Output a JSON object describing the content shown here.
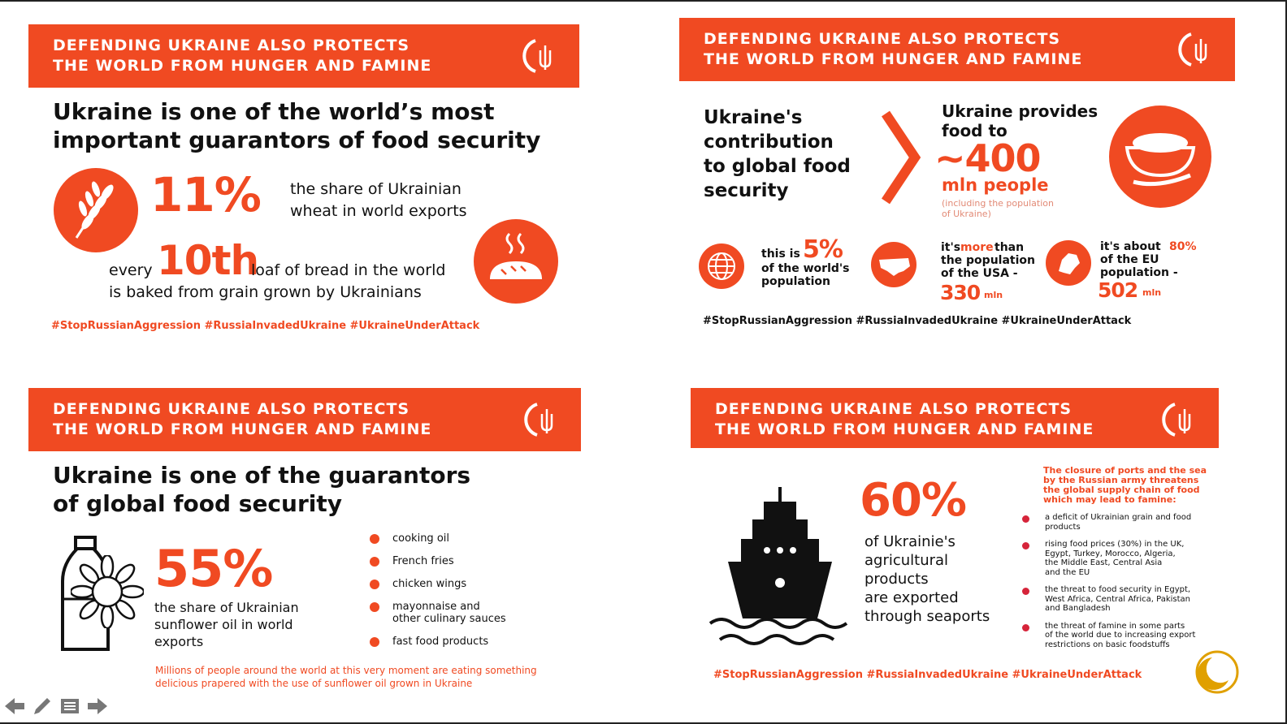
{
  "banner_title": "DEFENDING UKRAINE ALSO PROTECTS\nTHE WORLD FROM HUNGER AND FAMINE",
  "hashtags": "#StopRussianAggression #RussiaInvadedUkraine #UkraineUnderAttack",
  "colors": {
    "accent": "#f04a22",
    "text": "#111111"
  },
  "card1": {
    "heading": "Ukraine is one of the world’s most\nimportant guarantors of food security",
    "stat1_value": "11%",
    "stat1_text": "the share of Ukrainian\nwheat in world exports",
    "every": "every",
    "stat2_value": "10th",
    "stat2_text_1": "loaf of bread in the world",
    "stat2_text_2": "is baked from grain grown by Ukrainians",
    "icons": [
      "wheat-icon",
      "bread-icon"
    ]
  },
  "card2": {
    "heading": "Ukraine's\ncontribution\nto global food\nsecurity",
    "provides": "Ukraine provides\nfood to",
    "value": "~400",
    "unit": "mln people",
    "note": "(including the population\nof Ukraine)",
    "world_text": "this is",
    "world_value": "5%",
    "world_text_2": "of the world's\npopulation",
    "usa_text_1": "it's",
    "usa_more": "more",
    "usa_text_2": "than\nthe population\nof the USA -",
    "usa_value": "330",
    "usa_unit": "mln",
    "eu_text_1": "it's about",
    "eu_pct": "80%",
    "eu_text_2": "of the EU\npopulation -",
    "eu_value": "502",
    "eu_unit": "mln",
    "icons": [
      "globe-icon",
      "usa-map-icon",
      "europe-map-icon",
      "grain-bowl-icon"
    ]
  },
  "card3": {
    "heading": "Ukraine is one of the guarantors\nof global food security",
    "value": "55%",
    "text": "the share of Ukrainian\nsunflower oil in world\nexports",
    "items": [
      "cooking oil",
      "French fries",
      "chicken wings",
      "mayonnaise and\nother culinary sauces",
      "fast food products"
    ],
    "footer": "Millions of people around the world at this very moment are eating something\ndelicious prapered with the use of sunflower oil grown in Ukraine",
    "icons": [
      "bottle-icon",
      "sunflower-icon"
    ]
  },
  "card4": {
    "value": "60%",
    "text": "of Ukrainie's\nagricultural\nproducts\nare exported\nthrough seaports",
    "threat_heading": "The closure of ports and the sea\nby the Russian army threatens\nthe global supply chain of food\nwhich may lead to famine:",
    "threats": [
      "a deficit of Ukrainian grain and food\nproducts",
      "rising food prices (30%) in the UK,\nEgypt, Turkey, Morocco, Algeria,\nthe Middle East, Central Asia\nand the EU",
      "the threat to food security in Egypt,\nWest Africa, Central Africa, Pakistan\nand Bangladesh",
      "the threat of famine in some parts\nof the world due to increasing export\nrestrictions on basic foodstuffs"
    ],
    "icons": [
      "ship-icon"
    ]
  },
  "nav": [
    "back-arrow-icon",
    "pen-icon",
    "menu-icon",
    "forward-arrow-icon"
  ]
}
